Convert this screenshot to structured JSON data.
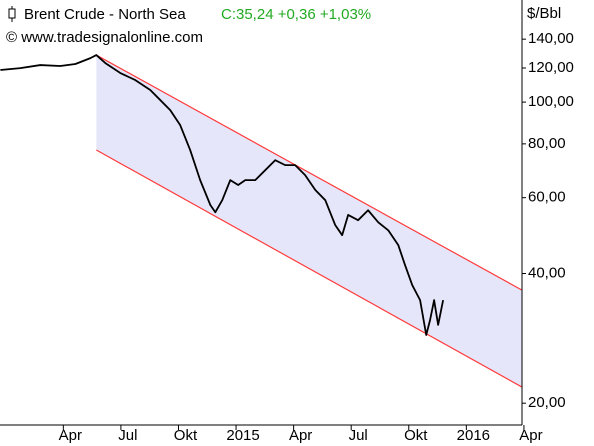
{
  "chart_data": {
    "type": "line",
    "title": "Brent Crude - North Sea",
    "quote": "C:35,24 +0,36 +1,03%",
    "subtitle": "© www.tradesignalonline.com",
    "y_label": "$/Bbl",
    "log_y": true,
    "xlim": [
      -0.3,
      26.9
    ],
    "ylim": [
      17.8,
      172.6
    ],
    "xticks": [
      {
        "value": 3,
        "label": "Apr"
      },
      {
        "value": 6,
        "label": "Jul"
      },
      {
        "value": 9,
        "label": "Okt"
      },
      {
        "value": 12,
        "label": "2015"
      },
      {
        "value": 15,
        "label": "Apr"
      },
      {
        "value": 18,
        "label": "Jul"
      },
      {
        "value": 21,
        "label": "Okt"
      },
      {
        "value": 24,
        "label": "2016"
      },
      {
        "value": 27,
        "label": "Apr"
      }
    ],
    "yticks": [
      {
        "value": 20,
        "label": "20,00"
      },
      {
        "value": 40,
        "label": "40,00"
      },
      {
        "value": 60,
        "label": "60,00"
      },
      {
        "value": 80,
        "label": "80,00"
      },
      {
        "value": 100,
        "label": "100,00"
      },
      {
        "value": 120,
        "label": "120,00"
      },
      {
        "value": 140,
        "label": "140,00"
      }
    ],
    "series": [
      {
        "name": "Brent Crude - North Sea",
        "color": "#000000",
        "x": [
          -0.28,
          0.76,
          1.8,
          2.84,
          3.63,
          4.41,
          4.72,
          5.19,
          5.97,
          6.75,
          7.53,
          8.05,
          8.57,
          9.09,
          9.61,
          10.13,
          10.66,
          10.92,
          11.28,
          11.7,
          12.11,
          12.48,
          13.0,
          13.52,
          14.04,
          14.56,
          15.08,
          15.6,
          16.13,
          16.65,
          17.17,
          17.53,
          17.84,
          18.36,
          18.88,
          19.41,
          19.93,
          20.45,
          20.81,
          21.18,
          21.59,
          21.91,
          22.11,
          22.32,
          22.53,
          22.79
        ],
        "values": [
          118.7,
          119.9,
          121.9,
          121.3,
          122.6,
          126.5,
          128.6,
          123.2,
          116.8,
          112.5,
          106.7,
          101.1,
          95.8,
          88.4,
          77.4,
          65.9,
          57.7,
          55.5,
          59.2,
          65.9,
          64.2,
          65.9,
          65.9,
          69.5,
          73.3,
          71.4,
          71.4,
          67.7,
          62.5,
          59.2,
          51.8,
          49.1,
          54.7,
          53.2,
          56.1,
          52.6,
          50.4,
          46.6,
          41.8,
          37.6,
          34.7,
          28.8,
          31.2,
          34.7,
          30.4,
          34.7
        ]
      }
    ],
    "channel": {
      "color": "#ff3b3b",
      "fill": "#e6e6fa",
      "upper": {
        "x": [
          4.72,
          26.9
        ],
        "values": [
          128.6,
          36.6
        ]
      },
      "lower": {
        "x": [
          4.72,
          26.9
        ],
        "values": [
          77.4,
          21.8
        ]
      }
    }
  }
}
